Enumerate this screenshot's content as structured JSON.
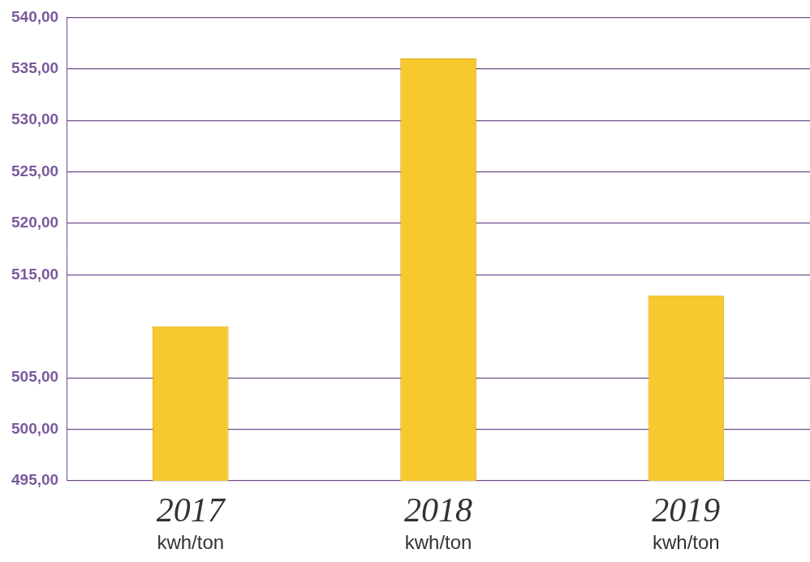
{
  "chart_data": {
    "type": "bar",
    "categories": [
      "2017",
      "2018",
      "2019"
    ],
    "unit": "kwh/ton",
    "values": [
      510,
      536,
      513
    ],
    "color": "#f6c92f",
    "ylim": [
      495,
      540
    ],
    "yticks": [
      {
        "value": 495,
        "label": "495,00"
      },
      {
        "value": 500,
        "label": "500,00"
      },
      {
        "value": 505,
        "label": "505,00"
      },
      {
        "value": 515,
        "label": "515,00"
      },
      {
        "value": 520,
        "label": "520,00"
      },
      {
        "value": 525,
        "label": "525,00"
      },
      {
        "value": 530,
        "label": "530,00"
      },
      {
        "value": 535,
        "label": "535,00"
      },
      {
        "value": 540,
        "label": "540,00"
      }
    ],
    "grid": true
  }
}
